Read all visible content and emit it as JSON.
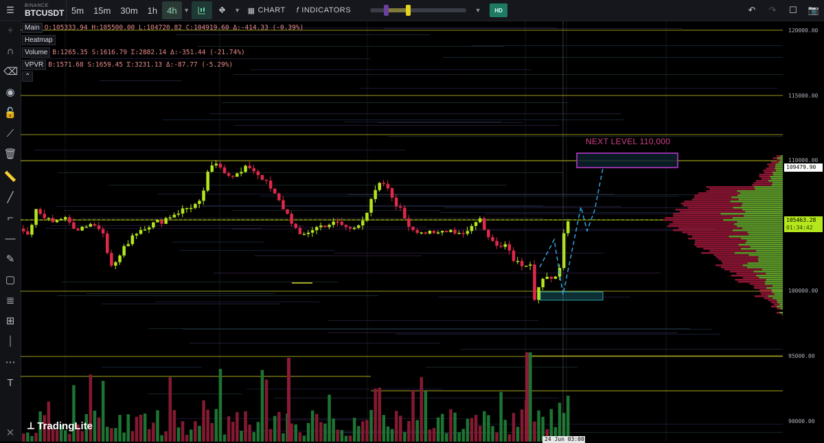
{
  "header": {
    "exchange": "BINANCE",
    "symbol": "BTCUSDT",
    "timeframes": [
      "5m",
      "15m",
      "30m",
      "1h",
      "4h"
    ],
    "active_timeframe": "4h",
    "chart_label": "CHART",
    "indicators_label": "INDICATORS",
    "hd_label": "HD"
  },
  "legend": {
    "main": {
      "tag": "Main",
      "o": "O:105333.94",
      "h": "H:105500.00",
      "l": "L:104720.82",
      "c": "C:104919.60",
      "d": "Δ:-414.33 (-0.39%)"
    },
    "heatmap": {
      "tag": "Heatmap"
    },
    "volume": {
      "tag": "Volume",
      "b": "B:1265.35",
      "s": "S:1616.79",
      "sum": "Σ:2882.14",
      "d": "Δ:-351.44 (-21.74%)"
    },
    "vpvr": {
      "tag": "VPVR",
      "b": "B:1571.68",
      "s": "S:1659.45",
      "sum": "Σ:3231.13",
      "d": "Δ:-87.77 (-5.29%)"
    }
  },
  "price_axis": {
    "ticks": [
      "120000.00",
      "115000.00",
      "110000.00",
      "105463.28",
      "100000.00",
      "95000.00",
      "90000.00"
    ],
    "tag_high": "109479.90",
    "tag_current": "105463.28",
    "tag_countdown": "01:34:42",
    "date_label": "24 Jun 03:00"
  },
  "annotation": "NEXT LEVEL 110,000",
  "logo": "TradingLite",
  "colors": {
    "bull": "#b5e61d",
    "bear": "#e0284a",
    "level": "#d9d92a",
    "target": "#c23bd4",
    "projection": "#2fa6e0",
    "support_box": "#2aa7a7"
  },
  "chart_data": {
    "type": "candlestick",
    "y_axis_range": [
      89000,
      121000
    ],
    "levels": [
      120000,
      115000,
      112000,
      110000,
      105463,
      100000,
      95000
    ],
    "target_level": 110000,
    "current_price": 105463.28
  }
}
